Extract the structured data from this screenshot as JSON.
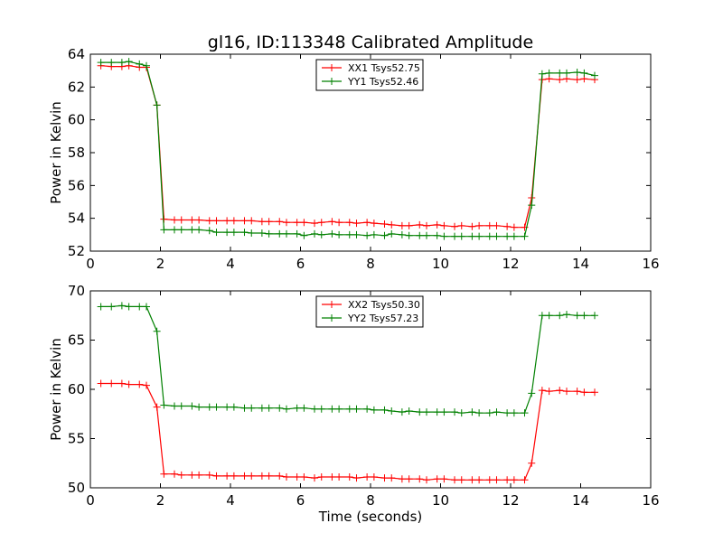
{
  "chart_data": [
    {
      "type": "line",
      "title": "gl16, ID:113348 Calibrated Amplitude",
      "xlabel": "",
      "ylabel": "Power in Kelvin",
      "xlim": [
        0,
        16
      ],
      "ylim": [
        52,
        64
      ],
      "xticks": [
        0,
        2,
        4,
        6,
        8,
        10,
        12,
        14,
        16
      ],
      "yticks": [
        52,
        54,
        56,
        58,
        60,
        62,
        64
      ],
      "grid": false,
      "legend": "top-center",
      "x": [
        0.3,
        0.6,
        0.9,
        1.1,
        1.4,
        1.6,
        1.9,
        2.1,
        2.4,
        2.6,
        2.9,
        3.1,
        3.4,
        3.6,
        3.9,
        4.1,
        4.4,
        4.6,
        4.9,
        5.1,
        5.4,
        5.6,
        5.9,
        6.1,
        6.4,
        6.6,
        6.9,
        7.1,
        7.4,
        7.6,
        7.9,
        8.1,
        8.4,
        8.6,
        8.9,
        9.1,
        9.4,
        9.6,
        9.9,
        10.1,
        10.4,
        10.6,
        10.9,
        11.1,
        11.4,
        11.6,
        11.9,
        12.1,
        12.4,
        12.6,
        12.9,
        13.1,
        13.4,
        13.6,
        13.9,
        14.1,
        14.4
      ],
      "series": [
        {
          "name": "XX1 Tsys52.75",
          "color": "#ff0000",
          "values": [
            63.3,
            63.25,
            63.25,
            63.3,
            63.2,
            63.2,
            60.9,
            53.95,
            53.9,
            53.9,
            53.9,
            53.9,
            53.85,
            53.85,
            53.85,
            53.85,
            53.85,
            53.85,
            53.8,
            53.8,
            53.8,
            53.75,
            53.75,
            53.75,
            53.7,
            53.75,
            53.8,
            53.75,
            53.75,
            53.7,
            53.75,
            53.7,
            53.65,
            53.6,
            53.55,
            53.55,
            53.6,
            53.55,
            53.6,
            53.55,
            53.5,
            53.55,
            53.5,
            53.55,
            53.55,
            53.55,
            53.5,
            53.45,
            53.45,
            55.25,
            62.45,
            62.5,
            62.45,
            62.5,
            62.45,
            62.5,
            62.45
          ]
        },
        {
          "name": "YY1 Tsys52.46",
          "color": "#008000",
          "values": [
            63.5,
            63.5,
            63.5,
            63.55,
            63.4,
            63.3,
            60.9,
            53.3,
            53.3,
            53.3,
            53.3,
            53.3,
            53.25,
            53.15,
            53.15,
            53.15,
            53.15,
            53.1,
            53.1,
            53.05,
            53.05,
            53.05,
            53.05,
            52.95,
            53.05,
            53.0,
            53.05,
            53.0,
            53.0,
            53.0,
            52.95,
            53.0,
            52.95,
            53.05,
            53.0,
            52.95,
            52.95,
            52.95,
            52.95,
            52.9,
            52.9,
            52.9,
            52.9,
            52.9,
            52.9,
            52.9,
            52.9,
            52.9,
            52.9,
            54.8,
            62.8,
            62.85,
            62.85,
            62.85,
            62.9,
            62.85,
            62.7
          ]
        }
      ]
    },
    {
      "type": "line",
      "title": "",
      "xlabel": "Time (seconds)",
      "ylabel": "Power in Kelvin",
      "xlim": [
        0,
        16
      ],
      "ylim": [
        50,
        70
      ],
      "xticks": [
        0,
        2,
        4,
        6,
        8,
        10,
        12,
        14,
        16
      ],
      "yticks": [
        50,
        55,
        60,
        65,
        70
      ],
      "grid": false,
      "legend": "top-center",
      "x": [
        0.3,
        0.6,
        0.9,
        1.1,
        1.4,
        1.6,
        1.9,
        2.1,
        2.4,
        2.6,
        2.9,
        3.1,
        3.4,
        3.6,
        3.9,
        4.1,
        4.4,
        4.6,
        4.9,
        5.1,
        5.4,
        5.6,
        5.9,
        6.1,
        6.4,
        6.6,
        6.9,
        7.1,
        7.4,
        7.6,
        7.9,
        8.1,
        8.4,
        8.6,
        8.9,
        9.1,
        9.4,
        9.6,
        9.9,
        10.1,
        10.4,
        10.6,
        10.9,
        11.1,
        11.4,
        11.6,
        11.9,
        12.1,
        12.4,
        12.6,
        12.9,
        13.1,
        13.4,
        13.6,
        13.9,
        14.1,
        14.4
      ],
      "series": [
        {
          "name": "XX2 Tsys50.30",
          "color": "#ff0000",
          "values": [
            60.6,
            60.6,
            60.6,
            60.5,
            60.5,
            60.4,
            58.2,
            51.4,
            51.4,
            51.3,
            51.3,
            51.3,
            51.3,
            51.2,
            51.2,
            51.2,
            51.2,
            51.2,
            51.2,
            51.2,
            51.2,
            51.1,
            51.1,
            51.1,
            51.0,
            51.1,
            51.1,
            51.1,
            51.1,
            51.0,
            51.1,
            51.1,
            51.0,
            51.0,
            50.9,
            50.9,
            50.9,
            50.8,
            50.9,
            50.9,
            50.8,
            50.8,
            50.8,
            50.8,
            50.8,
            50.8,
            50.8,
            50.8,
            50.8,
            52.5,
            59.9,
            59.8,
            59.9,
            59.8,
            59.8,
            59.7,
            59.7
          ]
        },
        {
          "name": "YY2 Tsys57.23",
          "color": "#008000",
          "values": [
            68.4,
            68.4,
            68.5,
            68.4,
            68.4,
            68.4,
            65.9,
            58.4,
            58.3,
            58.3,
            58.3,
            58.2,
            58.2,
            58.2,
            58.2,
            58.2,
            58.1,
            58.1,
            58.1,
            58.1,
            58.1,
            58.0,
            58.1,
            58.1,
            58.0,
            58.0,
            58.0,
            58.0,
            58.0,
            58.0,
            58.0,
            57.9,
            57.9,
            57.8,
            57.7,
            57.8,
            57.7,
            57.7,
            57.7,
            57.7,
            57.7,
            57.6,
            57.7,
            57.6,
            57.6,
            57.7,
            57.6,
            57.6,
            57.6,
            59.6,
            67.5,
            67.5,
            67.5,
            67.6,
            67.5,
            67.5,
            67.5
          ]
        }
      ]
    }
  ]
}
